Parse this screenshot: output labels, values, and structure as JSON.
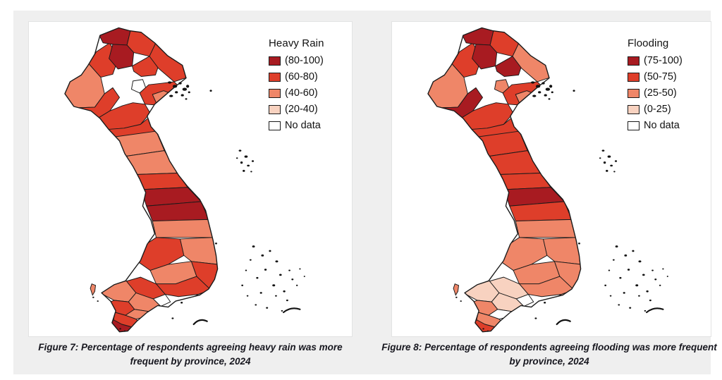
{
  "page": {
    "background": "#ffffff",
    "stage_background": "#efefef",
    "card_background": "#ffffff"
  },
  "palette": {
    "q1": "#a81b21",
    "q2": "#de3e2a",
    "q3": "#ef8668",
    "q4": "#f8d2c0",
    "none": "#ffffff",
    "stroke": "#1a1a1a",
    "island": "#111111",
    "caption_color": "#17171f"
  },
  "figures": [
    {
      "legend": {
        "title": "Heavy Rain",
        "items": [
          {
            "label": "(80-100)",
            "level": "q1"
          },
          {
            "label": "(60-80)",
            "level": "q2"
          },
          {
            "label": "(40-60)",
            "level": "q3"
          },
          {
            "label": "(20-40)",
            "level": "q4"
          },
          {
            "label": "No data",
            "level": "none"
          }
        ]
      },
      "caption": "Figure 7: Percentage of respondents agreeing heavy rain was more frequent by province, 2024",
      "region_levels": [
        "q3",
        "q2",
        "q1",
        "q2",
        "q1",
        "q2",
        "q2",
        "none",
        "q2",
        "q2",
        "q2",
        "q2",
        "q3",
        "q3",
        "q2",
        "q1",
        "q1",
        "q3",
        "q2",
        "q3",
        "q3",
        "q2",
        "q2",
        "q4",
        "q2",
        "none",
        "q3",
        "q3",
        "q2",
        "q3",
        "q2",
        "q1",
        "q3",
        "q3"
      ]
    },
    {
      "legend": {
        "title": "Flooding",
        "items": [
          {
            "label": "(75-100)",
            "level": "q1"
          },
          {
            "label": "(50-75)",
            "level": "q2"
          },
          {
            "label": "(25-50)",
            "level": "q3"
          },
          {
            "label": "(0-25)",
            "level": "q4"
          },
          {
            "label": "No data",
            "level": "none"
          }
        ]
      },
      "caption": "Figure 8: Percentage of respondents agreeing flooding was more frequent by province, 2024",
      "region_levels": [
        "q3",
        "q2",
        "q1",
        "q2",
        "q1",
        "q1",
        "q1",
        "q3",
        "q3",
        "q2",
        "q2",
        "q2",
        "q2",
        "q2",
        "q2",
        "q1",
        "q2",
        "q3",
        "q3",
        "q3",
        "q3",
        "q3",
        "q3",
        "q4",
        "q4",
        "none",
        "q4",
        "q4",
        "q3",
        "none",
        "q3",
        "q2",
        "q3",
        "q3"
      ]
    }
  ]
}
